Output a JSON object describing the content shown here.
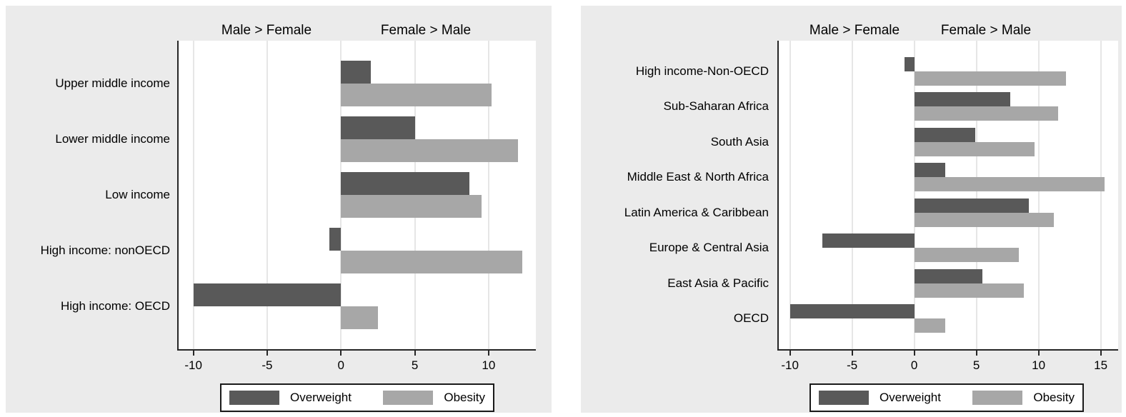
{
  "colors": {
    "panel_background": "#ebebeb",
    "plot_background": "#ffffff",
    "gridline": "#e6e6e6",
    "axis": "#262626",
    "overweight": "#595959",
    "obesity": "#a7a7a7",
    "text": "#000000",
    "legend_border": "#1a1a1a"
  },
  "chart_data": [
    {
      "type": "bar",
      "orientation": "horizontal",
      "title_negative": "Male > Female",
      "title_positive": "Female > Male",
      "categories": [
        "Upper middle income",
        "Lower middle income",
        "Low income",
        "High income: nonOECD",
        "High income: OECD"
      ],
      "series": [
        {
          "name": "Overweight",
          "color": "#595959",
          "values": [
            2.0,
            5.0,
            8.7,
            -0.8,
            -10.0
          ]
        },
        {
          "name": "Obesity",
          "color": "#a7a7a7",
          "values": [
            10.2,
            12.0,
            9.5,
            12.3,
            2.5
          ]
        }
      ],
      "xticks": [
        -10,
        -5,
        0,
        5,
        10
      ],
      "xtick_labels": [
        "-10",
        "-5",
        "0",
        "5",
        "10"
      ],
      "xlim": [
        -11,
        13.2
      ],
      "grid": true,
      "legend_position": "bottom-center"
    },
    {
      "type": "bar",
      "orientation": "horizontal",
      "title_negative": "Male > Female",
      "title_positive": "Female > Male",
      "categories": [
        "High income-Non-OECD",
        "Sub-Saharan Africa",
        "South Asia",
        "Middle East & North Africa",
        "Latin America & Caribbean",
        "Europe & Central Asia",
        "East Asia & Pacific",
        "OECD"
      ],
      "series": [
        {
          "name": "Overweight",
          "color": "#595959",
          "values": [
            -0.8,
            7.7,
            4.9,
            2.5,
            9.2,
            -7.4,
            5.5,
            -10.0
          ]
        },
        {
          "name": "Obesity",
          "color": "#a7a7a7",
          "values": [
            12.2,
            11.6,
            9.7,
            15.3,
            11.2,
            8.4,
            8.8,
            2.5
          ]
        }
      ],
      "xticks": [
        -10,
        -5,
        0,
        5,
        10,
        15
      ],
      "xtick_labels": [
        "-10",
        "-5",
        "0",
        "5",
        "10",
        "15"
      ],
      "xlim": [
        -10.9,
        16.4
      ],
      "grid": true,
      "legend_position": "bottom-center"
    }
  ]
}
